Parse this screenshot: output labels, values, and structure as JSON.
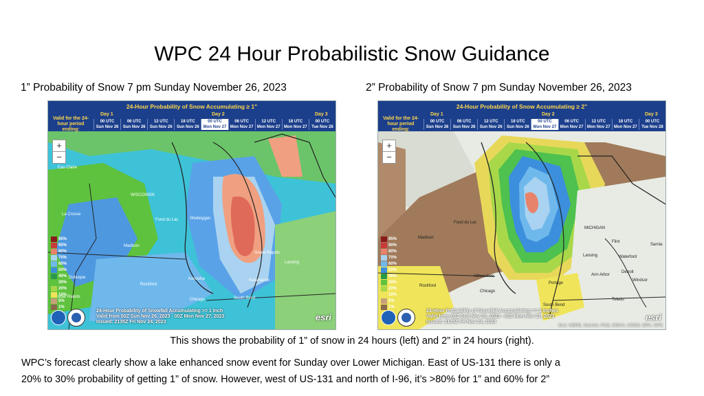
{
  "title": "WPC 24 Hour Probabilistic Snow Guidance",
  "captions": {
    "left": "1” Probability of  Snow 7 pm Sunday November 26, 2023",
    "right": "2” Probability of  Snow 7 pm Sunday November 26, 2023"
  },
  "maps": {
    "left": {
      "header_title": "24-Hour Probability of Snow Accumulating ≥ 1\"",
      "valid_label": "Valid for the 24-hour period ending:",
      "days": [
        "Day 1",
        "Day 2",
        "Day 3"
      ],
      "times": [
        {
          "utc": "00 UTC",
          "date": "Sun Nov 26"
        },
        {
          "utc": "06 UTC",
          "date": "Sun Nov 26"
        },
        {
          "utc": "12 UTC",
          "date": "Sun Nov 26"
        },
        {
          "utc": "18 UTC",
          "date": "Sun Nov 26"
        },
        {
          "utc": "00 UTC",
          "date": "Mon Nov 27"
        },
        {
          "utc": "06 UTC",
          "date": "Mon Nov 27"
        },
        {
          "utc": "12 UTC",
          "date": "Mon Nov 27"
        },
        {
          "utc": "18 UTC",
          "date": "Mon Nov 27"
        },
        {
          "utc": "00 UTC",
          "date": "Tue Nov 28"
        }
      ],
      "selected_index": 4,
      "footer": [
        "24-Hour Probability of Snowfall Accumulating >= 1 Inch",
        "Valid from 00Z Sun Nov 26, 2023 - 00Z Mon Nov 27, 2023",
        "Issued: 2135Z Fri Nov 24, 2023"
      ],
      "cities": [
        "Eau Claire",
        "WISCONSIN",
        "Fond du Lac",
        "Sheboygan",
        "La Crosse",
        "Madison",
        "Grand Rapids",
        "Lansing",
        "Rockford",
        "Chicago",
        "Kenosha",
        "Kalamazoo",
        "South Bend",
        "Dubuque",
        "Cedar Rapids"
      ]
    },
    "right": {
      "header_title": "24-Hour Probability of Snow Accumulating ≥ 2\"",
      "valid_label": "Valid for the 24-hour period ending:",
      "days": [
        "Day 1",
        "Day 2",
        "Day 3"
      ],
      "times": [
        {
          "utc": "00 UTC",
          "date": "Sun Nov 26"
        },
        {
          "utc": "06 UTC",
          "date": "Sun Nov 26"
        },
        {
          "utc": "12 UTC",
          "date": "Sun Nov 26"
        },
        {
          "utc": "18 UTC",
          "date": "Sun Nov 26"
        },
        {
          "utc": "00 UTC",
          "date": "Mon Nov 27"
        },
        {
          "utc": "06 UTC",
          "date": "Mon Nov 27"
        },
        {
          "utc": "12 UTC",
          "date": "Mon Nov 27"
        },
        {
          "utc": "18 UTC",
          "date": "Mon Nov 27"
        },
        {
          "utc": "00 UTC",
          "date": "Tue Nov 28"
        }
      ],
      "selected_index": 4,
      "footer": [
        "24-Hour Probability of Snowfall Accumulating >= 2 Inches",
        "Valid from 00Z Sun Nov 26, 2023 - 00Z Mon Nov 27, 2023",
        "Issued: 2135Z Fri Nov 24, 2023"
      ],
      "cities": [
        "Fond du Lac",
        "Madison",
        "MICHIGAN",
        "Flint",
        "Lansing",
        "Waterford",
        "Ann Arbor",
        "Detroit",
        "Windsor",
        "Milwaukee",
        "Chicago",
        "Portage",
        "South Bend",
        "Toledo",
        "Rockford",
        "Sarnia"
      ]
    }
  },
  "legend_labels": [
    "95%",
    "90%",
    "80%",
    "70%",
    "60%",
    "50%",
    "40%",
    "30%",
    "20%",
    "10%",
    "5%",
    "1%"
  ],
  "legend_colors": [
    "#8b1a1a",
    "#c93a3a",
    "#e8836b",
    "#a9d3f0",
    "#6fb8ec",
    "#3b8fdc",
    "#2a9a4a",
    "#5ec23e",
    "#a8d84a",
    "#f0e45a",
    "#c8a07a",
    "#8a6a4a"
  ],
  "attribution": "Esri, HERE, Garmin, FAO, NOAA, USGS, EPA, NPS",
  "esri": "esri",
  "zoom": {
    "in": "+",
    "out": "−"
  },
  "notes": {
    "line1": "This shows the probability of 1” of snow in 24 hours (left) and 2” in 24 hours (right).",
    "line2": "WPC’s forecast clearly show a lake enhanced snow event for Sunday over Lower Michigan.  East of US-131 there is only a",
    "line3": "20% to 30% probability of getting 1” of snow.  However, west of US-131 and north of I-96, it’s >80% for 1” and 60% for 2”"
  }
}
